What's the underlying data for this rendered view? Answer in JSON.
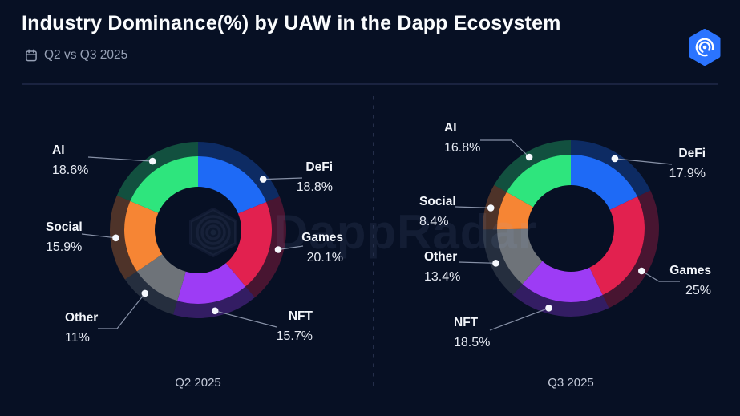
{
  "colors": {
    "background": "#071024",
    "brand_blue": "#2b74ff",
    "divider": "#1a2340"
  },
  "header": {
    "title": "Industry Dominance(%) by UAW in the Dapp Ecosystem",
    "subtitle": "Q2 vs Q3 2025",
    "subtitle_icon": "calendar-icon",
    "logo_icon": "dappradar-logo"
  },
  "watermark": {
    "text": "DappRadar",
    "icon": "radar-spiral-icon"
  },
  "chart_data": [
    {
      "type": "pie",
      "subtype": "donut-double-ring",
      "title": "Q2 2025",
      "direction": "clockwise",
      "start_angle_deg": 0,
      "legend_position": "callout-labels",
      "categories": [
        "DeFi",
        "Games",
        "NFT",
        "Other",
        "Social",
        "AI"
      ],
      "values": [
        18.8,
        20.1,
        15.7,
        11,
        15.9,
        18.6
      ],
      "value_labels": [
        "18.8%",
        "20.1%",
        "15.7%",
        "11%",
        "15.9%",
        "18.6%"
      ],
      "colors": [
        "#1e6af6",
        "#e2214f",
        "#9d3cf5",
        "#6e7379",
        "#f68534",
        "#2ee57d"
      ]
    },
    {
      "type": "pie",
      "subtype": "donut-double-ring",
      "title": "Q3 2025",
      "direction": "clockwise",
      "start_angle_deg": 0,
      "legend_position": "callout-labels",
      "categories": [
        "DeFi",
        "Games",
        "NFT",
        "Other",
        "Social",
        "AI"
      ],
      "values": [
        17.9,
        25,
        18.5,
        13.4,
        8.4,
        16.8
      ],
      "value_labels": [
        "17.9%",
        "25%",
        "18.5%",
        "13.4%",
        "8.4%",
        "16.8%"
      ],
      "colors": [
        "#1e6af6",
        "#e2214f",
        "#9d3cf5",
        "#6e7379",
        "#f68534",
        "#2ee57d"
      ]
    }
  ]
}
